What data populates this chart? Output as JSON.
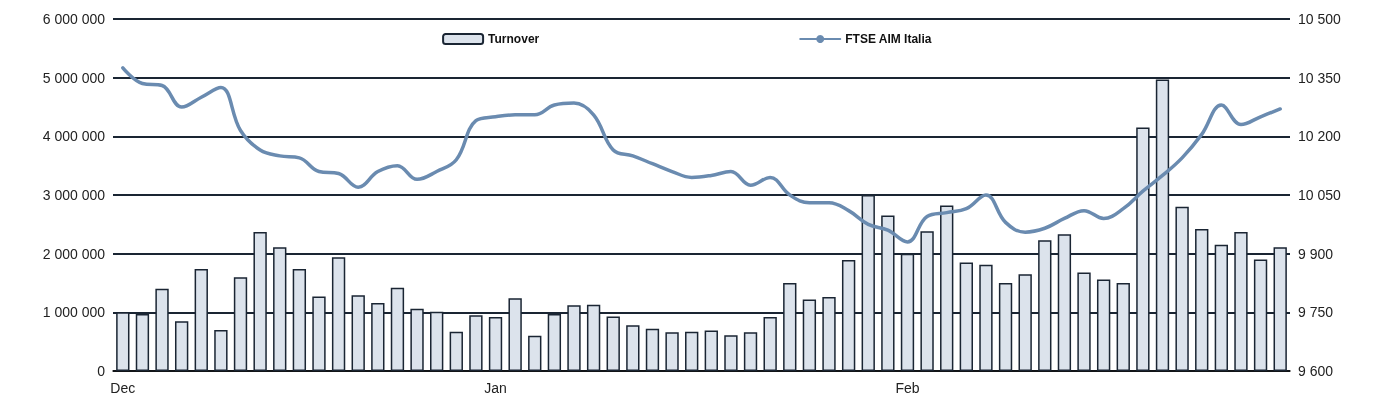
{
  "chart_data": {
    "type": "bar",
    "categories": [
      "Dec",
      null,
      null,
      null,
      null,
      null,
      null,
      null,
      null,
      null,
      null,
      null,
      null,
      null,
      null,
      null,
      null,
      null,
      null,
      "Jan",
      null,
      null,
      null,
      null,
      null,
      null,
      null,
      null,
      null,
      null,
      null,
      null,
      null,
      null,
      null,
      null,
      null,
      null,
      null,
      null,
      "Feb",
      null,
      null,
      null,
      null,
      null,
      null,
      null,
      null,
      null,
      null,
      null,
      null,
      null,
      null,
      null,
      null,
      null,
      null,
      null
    ],
    "series": [
      {
        "name": "Turnover",
        "color": "#dce3ec",
        "values": [
          1000000,
          970000,
          1400000,
          850000,
          1740000,
          700000,
          1600000,
          2370000,
          2110000,
          1740000,
          1270000,
          1940000,
          1290000,
          1160000,
          1420000,
          1060000,
          1010000,
          670000,
          950000,
          920000,
          1240000,
          600000,
          970000,
          1120000,
          1130000,
          930000,
          780000,
          720000,
          660000,
          670000,
          690000,
          610000,
          660000,
          920000,
          1500000,
          1220000,
          1260000,
          1890000,
          3000000,
          2650000,
          2000000,
          2380000,
          2820000,
          1850000,
          1810000,
          1500000,
          1650000,
          2230000,
          2330000,
          1680000,
          1560000,
          1500000,
          4150000,
          4970000,
          2800000,
          2420000,
          2150000,
          2370000,
          1900000,
          2110000
        ]
      },
      {
        "name": "FTSE AIM Italia",
        "type": "line",
        "axis": "y2",
        "color": "#6a8bb0",
        "values": [
          10375,
          10335,
          10330,
          10275,
          10300,
          10325,
          10215,
          10165,
          10150,
          10145,
          10110,
          10105,
          10070,
          10110,
          10125,
          10090,
          10110,
          10140,
          10240,
          10250,
          10255,
          10255,
          10280,
          10285,
          10255,
          10165,
          10150,
          10130,
          10110,
          10095,
          10100,
          10110,
          10075,
          10095,
          10050,
          10030,
          10030,
          10010,
          9975,
          9960,
          9930,
          9995,
          10005,
          10015,
          10050,
          9980,
          9955,
          9965,
          9990,
          10010,
          9990,
          10015,
          10060,
          10100,
          10145,
          10205,
          10280,
          10230,
          10250,
          10270
        ]
      }
    ],
    "ylim": [
      0,
      6000000
    ],
    "yticks": [
      {
        "value": 0,
        "label": "0"
      },
      {
        "value": 1000000,
        "label": "1 000 000"
      },
      {
        "value": 2000000,
        "label": "2 000 000"
      },
      {
        "value": 3000000,
        "label": "3 000 000"
      },
      {
        "value": 4000000,
        "label": "4 000 000"
      },
      {
        "value": 5000000,
        "label": "5 000 000"
      },
      {
        "value": 6000000,
        "label": "6 000 000"
      }
    ],
    "y2lim": [
      9600,
      10500
    ],
    "y2ticks": [
      {
        "value": 9600,
        "label": "9 600"
      },
      {
        "value": 9750,
        "label": "9 750"
      },
      {
        "value": 9900,
        "label": "9 900"
      },
      {
        "value": 10050,
        "label": "10 050"
      },
      {
        "value": 10200,
        "label": "10 200"
      },
      {
        "value": 10350,
        "label": "10 350"
      },
      {
        "value": 10500,
        "label": "10 500"
      }
    ],
    "grid": "y",
    "legend": "top",
    "marker": "none",
    "line_style": "solid"
  }
}
